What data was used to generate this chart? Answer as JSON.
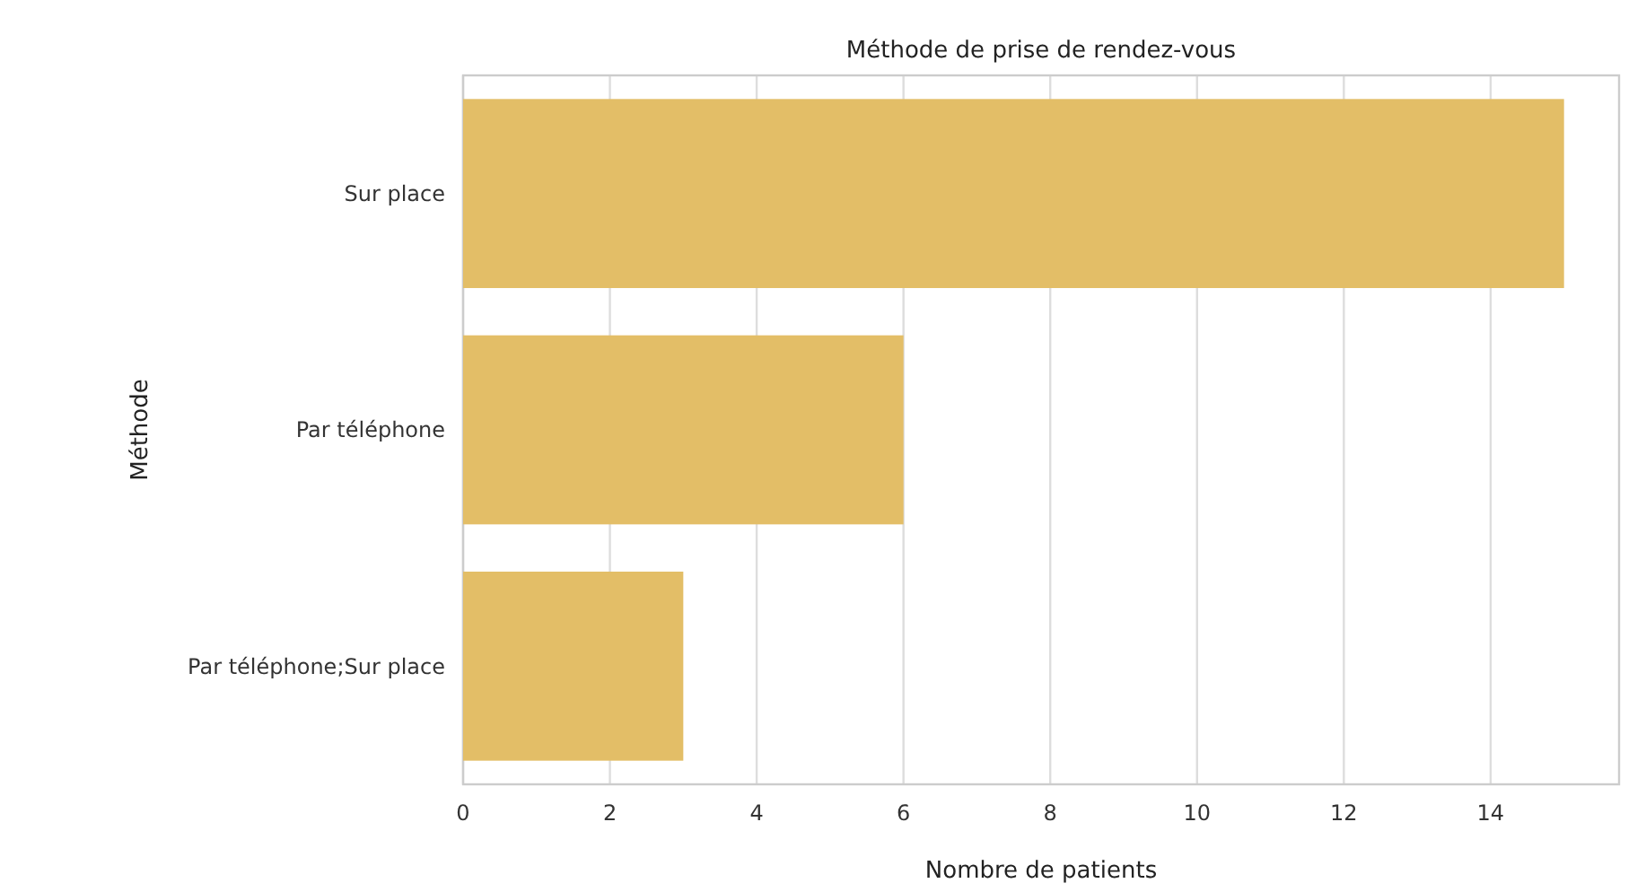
{
  "chart_data": {
    "type": "bar",
    "orientation": "horizontal",
    "title": "Méthode de prise de rendez-vous",
    "xlabel": "Nombre de patients",
    "ylabel": "Méthode",
    "categories": [
      "Sur place",
      "Par téléphone",
      "Par téléphone;Sur place"
    ],
    "values": [
      15,
      6,
      3
    ],
    "color": "#e3be67",
    "xlim": [
      0,
      15.75
    ],
    "xticks": [
      0,
      2,
      4,
      6,
      8,
      10,
      12,
      14
    ],
    "grid": "x"
  }
}
